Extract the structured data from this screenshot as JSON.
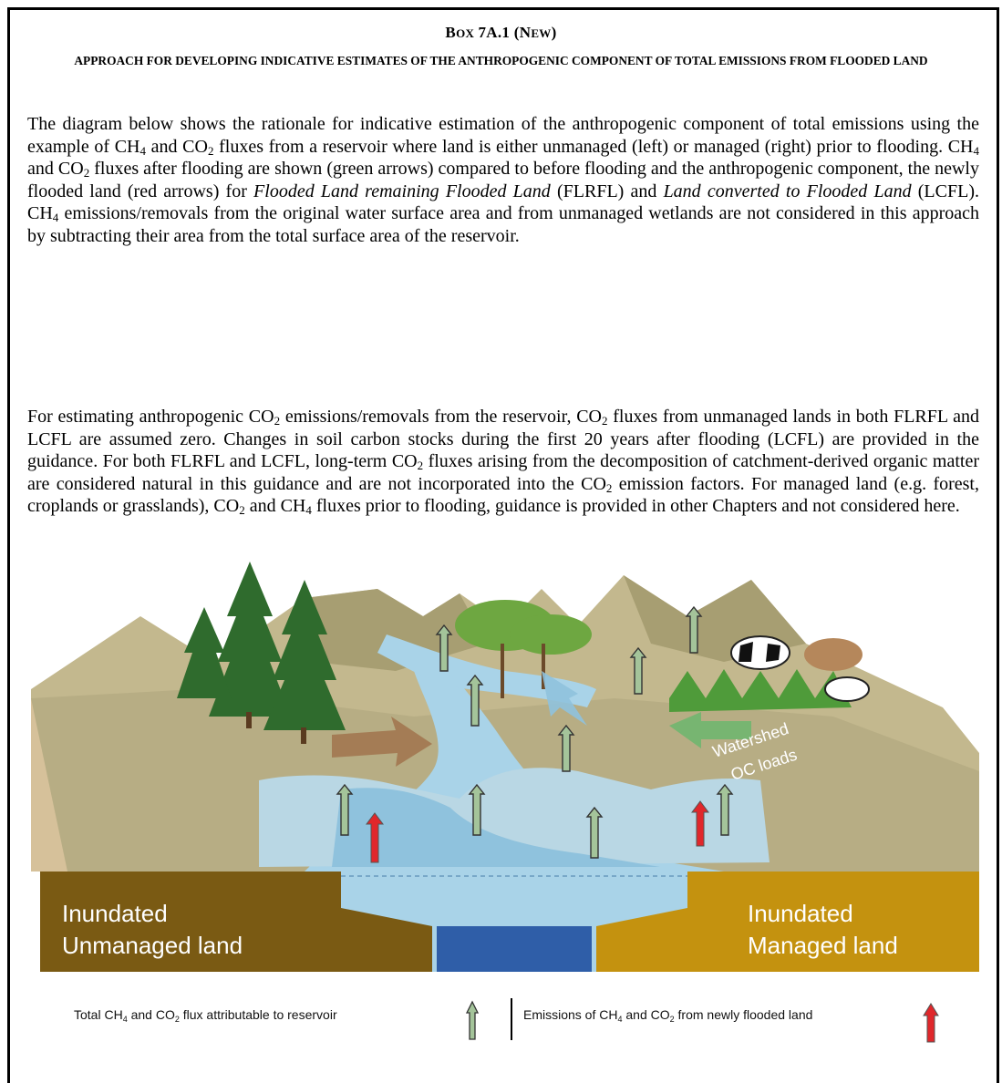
{
  "header": {
    "box_label": "Box 7A.1 (New)",
    "title": "Approach for developing indicative estimates of the anthropogenic component of total emissions from flooded land"
  },
  "paragraph1": {
    "a": "The diagram below shows the rationale for indicative estimation of the anthropogenic component of total emissions using the example of CH",
    "b": " and CO",
    "c": " fluxes from a reservoir where land is either unmanaged (left) or managed (right) prior to flooding. CH",
    "d": " and CO",
    "e": " fluxes after flooding are shown (green arrows) compared to before flooding and the anthropogenic component, the newly flooded land (red arrows) for ",
    "i1": "Flooded Land remaining Flooded Land",
    "f": " (FLRFL) and ",
    "i2": "Land converted to Flooded Land",
    "g": " (LCFL). CH",
    "h": " emissions/removals from the original water surface area and from unmanaged wetlands are not considered in this approach by subtracting their area from the total surface area of the reservoir."
  },
  "paragraph2": {
    "a": "For estimating anthropogenic CO",
    "b": " emissions/removals from the reservoir, CO",
    "c": " fluxes from unmanaged lands in both FLRFL and LCFL are assumed zero. Changes in soil carbon stocks during the first 20 years after flooding (LCFL) are provided in the guidance. For both FLRFL and LCFL, long-term CO",
    "d": " fluxes arising from the decomposition of catchment-derived organic matter are considered natural in this guidance and are not incorporated into the CO",
    "e": " emission factors. For managed land (e.g. forest, croplands or grasslands), CO",
    "f": " and CH",
    "g": " fluxes prior to flooding, guidance is provided in other Chapters and not considered here."
  },
  "subscripts": {
    "four": "4",
    "two": "2"
  },
  "figure": {
    "label_left_1": "Inundated",
    "label_left_2": "Unmanaged land",
    "label_right_1": "Inundated",
    "label_right_2": "Managed land",
    "watershed_1": "Watershed",
    "watershed_2": "OC loads"
  },
  "legend": {
    "left_a": "Total CH",
    "left_b": " and CO",
    "left_c": " flux attributable to reservoir",
    "right_a": "Emissions of CH",
    "right_b": " and CO",
    "right_c": " from newly flooded land"
  },
  "colors": {
    "green_arrow": "#9fbf8f",
    "red_arrow": "#e0272b",
    "unmanaged_soil": "#7a5a13",
    "managed_soil": "#c4920f",
    "deep_water": "#2f5ea8",
    "water": "#9ecbe2"
  }
}
